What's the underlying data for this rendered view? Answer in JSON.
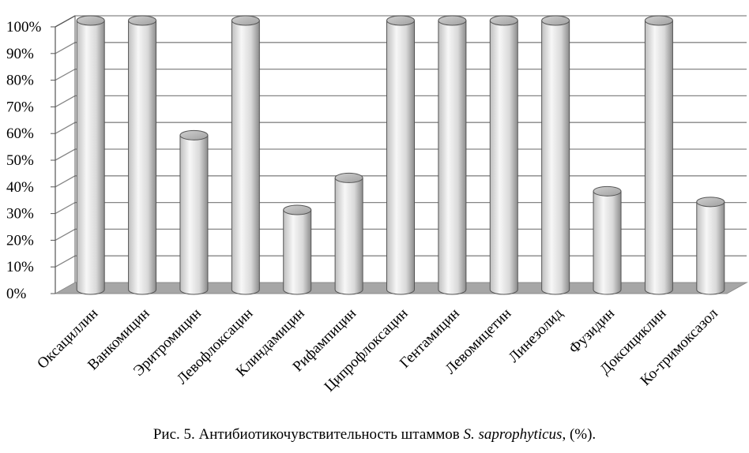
{
  "chart_data": {
    "type": "bar",
    "style": "3d-cylinder",
    "categories": [
      "Оксациллин",
      "Ванкомицин",
      "Эритромицин",
      "Левофлоксацин",
      "Клиндамицин",
      "Рифампицин",
      "Ципрофлоксацин",
      "Гентамицин",
      "Левомицетин",
      "Линезолид",
      "Фузидин",
      "Доксициклин",
      "Ко-тримоксазол"
    ],
    "values": [
      100,
      100,
      57,
      100,
      29,
      41,
      100,
      100,
      100,
      100,
      36,
      100,
      32
    ],
    "ylim": [
      0,
      100
    ],
    "yticks": [
      "0%",
      "10%",
      "20%",
      "30%",
      "40%",
      "50%",
      "60%",
      "70%",
      "80%",
      "90%",
      "100%"
    ],
    "grid": true,
    "colors": {
      "bar_light": "#f2f2f2",
      "bar_dark": "#8c8c8c",
      "floor": "#a6a6a6",
      "grid": "#868686"
    }
  },
  "caption": {
    "prefix": "Рис. 5. Антибиотикочувствительность штаммов ",
    "italic": "S. saprophyticus",
    "suffix": ", (%)."
  }
}
